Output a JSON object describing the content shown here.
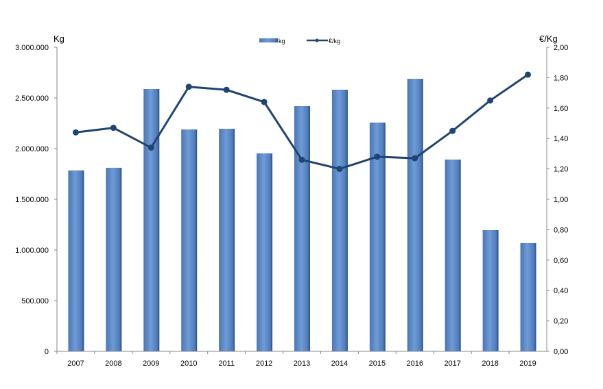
{
  "chart_data": {
    "type": "bar+line",
    "categories": [
      "2007",
      "2008",
      "2009",
      "2010",
      "2011",
      "2012",
      "2013",
      "2014",
      "2015",
      "2016",
      "2017",
      "2018",
      "2019"
    ],
    "series": [
      {
        "name": "kg",
        "type": "bar",
        "axis": "left",
        "color": "#5b87c5",
        "values": [
          1785000,
          1811000,
          2588000,
          2189000,
          2196000,
          1953000,
          2419000,
          2581000,
          2257000,
          2689000,
          1892000,
          1196000,
          1068000
        ]
      },
      {
        "name": "€/kg",
        "type": "line",
        "axis": "right",
        "color": "#1f4471",
        "values": [
          1.44,
          1.47,
          1.34,
          1.74,
          1.72,
          1.64,
          1.26,
          1.2,
          1.28,
          1.27,
          1.45,
          1.65,
          1.82
        ]
      }
    ],
    "ylabel_left": "Kg",
    "ylabel_right": "€/Kg",
    "ylim_left": [
      0,
      3000000
    ],
    "ylim_right": [
      0,
      2.0
    ],
    "yticks_left": [
      "0",
      "500.000",
      "1.000.000",
      "1.500.000",
      "2.000.000",
      "2.500.000",
      "3.000.000"
    ],
    "yticks_right": [
      "0,00",
      "0,20",
      "0,40",
      "0,60",
      "0,80",
      "1,00",
      "1,20",
      "1,40",
      "1,60",
      "1,80",
      "2,00"
    ],
    "grid": false,
    "legend_position": "top-center"
  }
}
